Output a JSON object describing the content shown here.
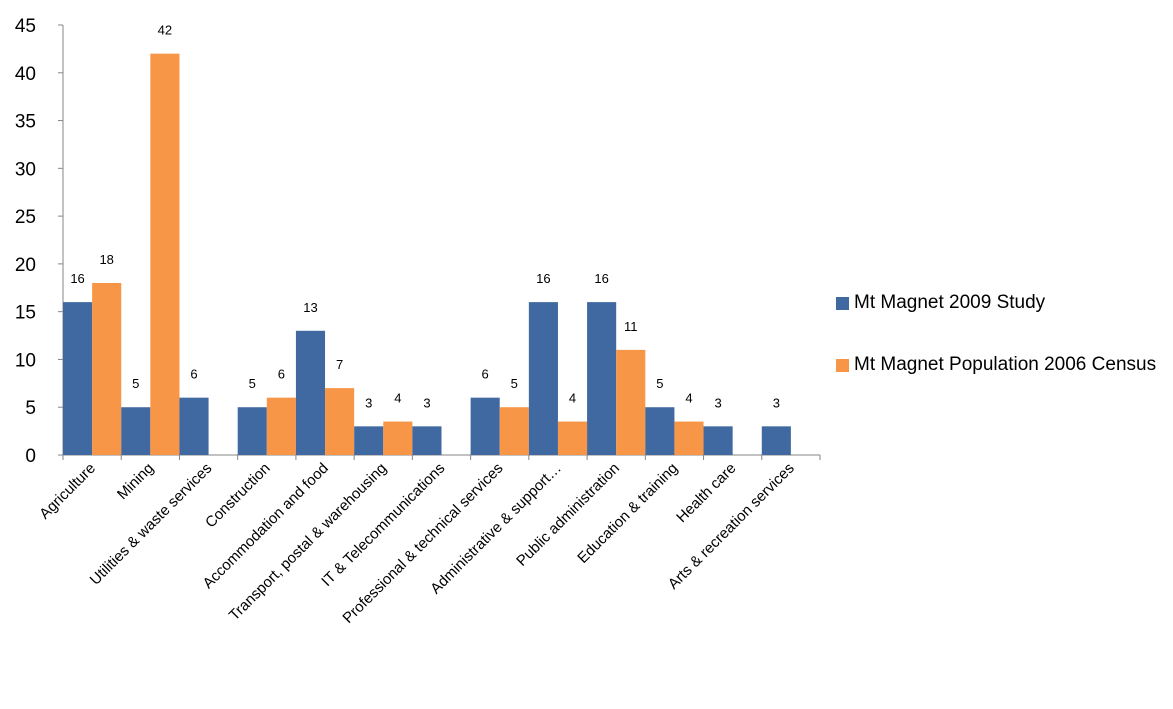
{
  "chart_data": {
    "type": "bar",
    "categories": [
      "Agriculture",
      "Mining",
      "Utilities & waste services",
      "Construction",
      "Accommodation and food",
      "Transport, postal & warehousing",
      "IT & Telecommunications",
      "Professional & technical services",
      "Administrative & support…",
      "Public administration",
      "Education & training",
      "Health care",
      "Arts & recreation services"
    ],
    "series": [
      {
        "name": "Mt Magnet 2009 Study",
        "color": "#4169a1",
        "values": [
          16,
          5,
          6,
          5,
          13,
          3,
          3,
          6,
          16,
          16,
          5,
          3,
          3
        ],
        "value_labels": [
          "16",
          "5",
          "6",
          "5",
          "13",
          "3",
          "3",
          "6",
          "16",
          "16",
          "5",
          "3",
          "3"
        ]
      },
      {
        "name": "Mt Magnet Population 2006 Census",
        "color": "#f79646",
        "values": [
          18,
          42,
          null,
          6,
          7,
          3.5,
          null,
          5,
          3.5,
          11,
          3.5,
          null,
          null
        ],
        "value_labels": [
          "18",
          "42",
          null,
          "6",
          "7",
          "4",
          null,
          "5",
          "4",
          "11",
          "4",
          null,
          null
        ]
      }
    ],
    "ylim": [
      0,
      45
    ],
    "yticks": [
      0,
      5,
      10,
      15,
      20,
      25,
      30,
      35,
      40,
      45
    ]
  }
}
